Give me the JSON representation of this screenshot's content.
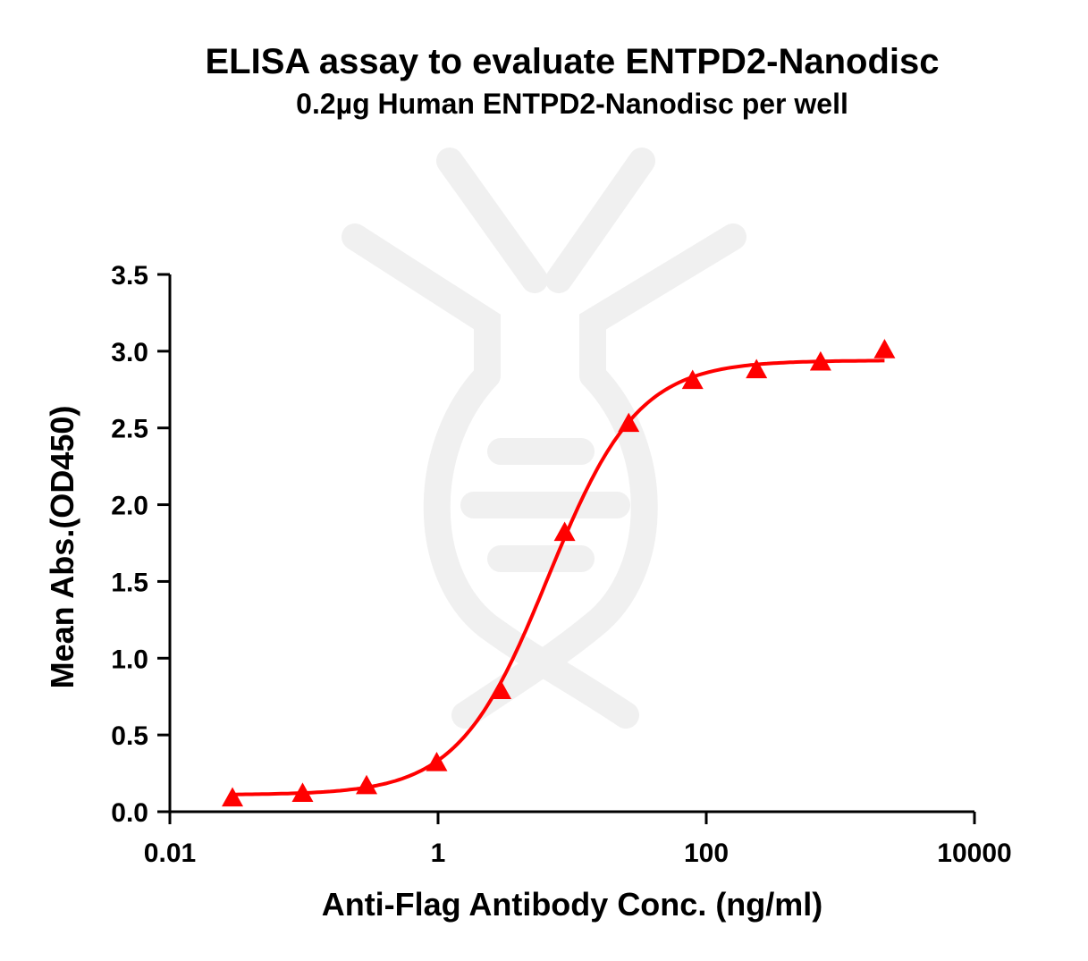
{
  "chart_data": {
    "type": "scatter",
    "title": "ELISA assay to evaluate ENTPD2-Nanodisc",
    "subtitle": "0.2µg Human ENTPD2-Nanodisc per well",
    "xlabel": "Anti-Flag Antibody Conc. (ng/ml)",
    "ylabel": "Mean Abs.(OD450)",
    "x_scale": "log",
    "xlim": [
      0.01,
      10000
    ],
    "ylim": [
      0,
      3.5
    ],
    "x_ticks": [
      {
        "value": 0.01,
        "label": "0.01"
      },
      {
        "value": 1,
        "label": "1"
      },
      {
        "value": 100,
        "label": "100"
      },
      {
        "value": 10000,
        "label": "10000"
      }
    ],
    "y_ticks": [
      {
        "value": 0,
        "label": "0.0"
      },
      {
        "value": 0.5,
        "label": "0.5"
      },
      {
        "value": 1,
        "label": "1.0"
      },
      {
        "value": 1.5,
        "label": "1.5"
      },
      {
        "value": 2,
        "label": "2.0"
      },
      {
        "value": 2.5,
        "label": "2.5"
      },
      {
        "value": 3,
        "label": "3.0"
      },
      {
        "value": 3.5,
        "label": "3.5"
      }
    ],
    "grid": false,
    "series": [
      {
        "marker": "triangle",
        "color": "#ff0000",
        "x": [
          0.0293,
          0.0977,
          0.293,
          0.977,
          2.93,
          8.79,
          26.4,
          79.1,
          237,
          712,
          2136
        ],
        "y": [
          0.09,
          0.12,
          0.17,
          0.32,
          0.79,
          1.82,
          2.53,
          2.81,
          2.88,
          2.93,
          3.01
        ]
      }
    ],
    "fit_curve": {
      "model": "4PL",
      "color": "#ff0000",
      "bottom": 0.11,
      "top": 2.94,
      "ec50": 6.6,
      "hill": 1.3
    }
  }
}
